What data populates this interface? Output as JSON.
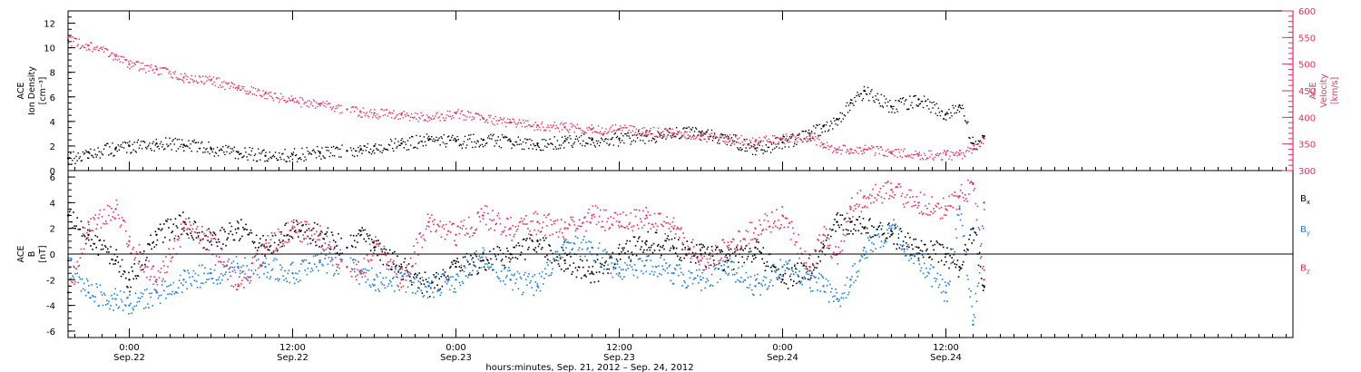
{
  "chart_data": [
    {
      "type": "scatter",
      "panel": "top",
      "ylabel_left": [
        "ACE",
        "Ion Density",
        "[cm⁻³]"
      ],
      "ylabel_right": [
        "ACE",
        "Velocity",
        "[km/s]"
      ],
      "ylim_left": [
        0,
        13
      ],
      "left_ticks": [
        "0",
        "2",
        "4",
        "6",
        "8",
        "10",
        "12"
      ],
      "ylim_right": [
        300,
        600
      ],
      "right_ticks": [
        "300",
        "350",
        "400",
        "450",
        "500",
        "550",
        "600"
      ],
      "xlim_hours": [
        -4.5,
        85.5
      ],
      "data_span_hours": [
        -4.5,
        62.8
      ],
      "series": [
        {
          "name": "Ion Density",
          "color": "#000000",
          "axis": "left",
          "x": [
            -4.5,
            -3,
            -1,
            0,
            2,
            4,
            6,
            8,
            10,
            12,
            14,
            16,
            17,
            18,
            20,
            22,
            24,
            26,
            28,
            30,
            32,
            34,
            36,
            38,
            40,
            42,
            44,
            46,
            48,
            50,
            51,
            52,
            53,
            54,
            56,
            58,
            60,
            61,
            62,
            62.8
          ],
          "y": [
            1.0,
            1.5,
            1.8,
            2.0,
            2.2,
            2.1,
            1.8,
            1.5,
            1.2,
            1.3,
            1.5,
            1.6,
            1.7,
            2.0,
            2.2,
            2.5,
            2.4,
            2.5,
            2.4,
            2.2,
            2.4,
            2.5,
            2.6,
            2.8,
            3.0,
            3.1,
            2.6,
            1.8,
            2.3,
            3.0,
            3.6,
            4.2,
            5.5,
            6.5,
            5.2,
            5.8,
            4.6,
            5.3,
            2.2,
            2.8
          ]
        },
        {
          "name": "Velocity",
          "color": "#e0335e",
          "axis": "right",
          "x": [
            -4.5,
            -3,
            -1,
            0,
            2,
            4,
            6,
            8,
            10,
            12,
            14,
            16,
            17,
            18,
            20,
            22,
            24,
            26,
            28,
            30,
            32,
            34,
            36,
            38,
            40,
            42,
            44,
            46,
            48,
            50,
            51,
            52,
            53,
            54,
            56,
            58,
            60,
            61,
            62,
            62.8
          ],
          "y": [
            545,
            535,
            515,
            500,
            490,
            475,
            470,
            455,
            445,
            432,
            425,
            415,
            410,
            408,
            405,
            400,
            408,
            398,
            390,
            385,
            382,
            378,
            378,
            375,
            370,
            365,
            360,
            355,
            360,
            365,
            350,
            340,
            340,
            340,
            335,
            330,
            330,
            330,
            340,
            360
          ]
        }
      ]
    },
    {
      "type": "scatter",
      "panel": "bottom",
      "ylabel_left": [
        "ACE",
        "B",
        "[nT]"
      ],
      "ylim": [
        -6.5,
        6.5
      ],
      "left_ticks": [
        "-6",
        "-4",
        "-2",
        "0",
        "2",
        "4",
        "6"
      ],
      "zero_line": true,
      "legend_position": "right",
      "xlim_hours": [
        -4.5,
        85.5
      ],
      "data_span_hours": [
        -4.5,
        62.8
      ],
      "series": [
        {
          "name": "Bx",
          "label_main": "B",
          "label_sub": "x",
          "color": "#000000",
          "x": [
            -4.5,
            -3,
            -1,
            0,
            2,
            4,
            6,
            8,
            10,
            12,
            14,
            16,
            17,
            18,
            20,
            22,
            24,
            26,
            28,
            30,
            32,
            34,
            36,
            38,
            40,
            42,
            44,
            46,
            48,
            50,
            51,
            52,
            53,
            54,
            56,
            58,
            60,
            61,
            62,
            62.8
          ],
          "y": [
            3.0,
            1.5,
            -0.5,
            -2.0,
            1.5,
            2.5,
            1.0,
            2.0,
            0.5,
            2.0,
            1.5,
            0.5,
            1.8,
            0.5,
            -1.0,
            -2.5,
            -1.0,
            -0.5,
            0.0,
            1.0,
            -0.5,
            -1.5,
            0.0,
            1.0,
            0.5,
            0.0,
            -0.5,
            0.5,
            -2.0,
            -1.0,
            0.5,
            2.5,
            2.5,
            2.0,
            1.5,
            0.5,
            0.0,
            -1.0,
            2.0,
            -2.5
          ]
        },
        {
          "name": "By",
          "label_main": "B",
          "label_sub": "y",
          "color": "#1a7fd9",
          "x": [
            -4.5,
            -3,
            -1,
            0,
            2,
            4,
            6,
            8,
            10,
            12,
            14,
            16,
            17,
            18,
            20,
            22,
            24,
            26,
            28,
            30,
            32,
            34,
            36,
            38,
            40,
            42,
            44,
            46,
            48,
            50,
            51,
            52,
            53,
            54,
            56,
            58,
            60,
            61,
            62,
            62.8
          ],
          "y": [
            -0.5,
            -3.0,
            -3.5,
            -4.0,
            -3.0,
            -2.0,
            -1.5,
            -1.0,
            -1.0,
            -1.5,
            -0.5,
            -1.0,
            -1.5,
            -2.0,
            -2.0,
            -2.5,
            -2.0,
            0.0,
            -2.0,
            -2.5,
            1.0,
            0.5,
            -1.5,
            -0.5,
            -1.5,
            -2.0,
            -1.0,
            -2.5,
            -1.0,
            -2.0,
            -2.5,
            -3.5,
            -2.0,
            0.5,
            2.0,
            -0.5,
            -3.0,
            3.5,
            -5.5,
            4.0
          ]
        },
        {
          "name": "Bz",
          "label_main": "B",
          "label_sub": "z",
          "color": "#e0335e",
          "x": [
            -4.5,
            -3,
            -1,
            0,
            2,
            4,
            6,
            8,
            10,
            12,
            14,
            16,
            17,
            18,
            20,
            22,
            24,
            26,
            28,
            30,
            32,
            34,
            36,
            38,
            40,
            42,
            44,
            46,
            48,
            50,
            51,
            52,
            53,
            54,
            56,
            58,
            60,
            61,
            62,
            62.8
          ],
          "y": [
            -3.0,
            2.5,
            3.5,
            1.0,
            -2.0,
            2.0,
            1.0,
            -2.5,
            0.5,
            2.0,
            1.5,
            -1.0,
            -1.5,
            1.0,
            -2.0,
            2.5,
            1.5,
            3.0,
            2.0,
            2.5,
            2.0,
            3.0,
            2.5,
            3.0,
            2.0,
            -0.5,
            0.5,
            2.0,
            3.0,
            -1.0,
            1.5,
            0.0,
            3.5,
            4.5,
            5.0,
            4.0,
            3.5,
            4.5,
            5.5,
            -2.0
          ]
        }
      ]
    }
  ],
  "x_axis": {
    "ticks": [
      {
        "hour": 0,
        "time": "0:00",
        "date": "Sep.22"
      },
      {
        "hour": 12,
        "time": "12:00",
        "date": "Sep.22"
      },
      {
        "hour": 24,
        "time": "0:00",
        "date": "Sep.23"
      },
      {
        "hour": 36,
        "time": "12:00",
        "date": "Sep.23"
      },
      {
        "hour": 48,
        "time": "0:00",
        "date": "Sep.24"
      },
      {
        "hour": 60,
        "time": "12:00",
        "date": "Sep.24"
      }
    ],
    "minor_step_hours": 1,
    "label": "hours:minutes, Sep. 21, 2012 – Sep. 24, 2012"
  },
  "colors": {
    "black": "#000000",
    "magenta": "#e0335e",
    "blue": "#1a7fd9"
  }
}
